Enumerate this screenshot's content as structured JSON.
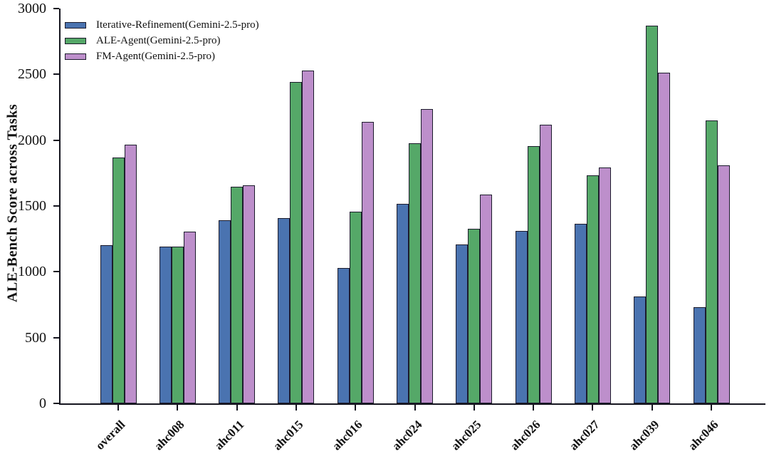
{
  "chart_data": {
    "type": "bar",
    "title": "",
    "ylabel": "ALE-Bench Score across Tasks",
    "xlabel": "",
    "ylim": [
      0,
      3000
    ],
    "yticks": [
      0,
      500,
      1000,
      1500,
      2000,
      2500,
      3000
    ],
    "categories": [
      "overall",
      "ahc008",
      "ahc011",
      "ahc015",
      "ahc016",
      "ahc024",
      "ahc025",
      "ahc026",
      "ahc027",
      "ahc039",
      "ahc046"
    ],
    "series": [
      {
        "name": "Iterative-Refinement(Gemini-2.5-pro)",
        "color": "#4a73b0",
        "values": [
          1200,
          1190,
          1390,
          1410,
          1030,
          1515,
          1210,
          1310,
          1365,
          810,
          730
        ]
      },
      {
        "name": "ALE-Agent(Gemini-2.5-pro)",
        "color": "#55a868",
        "values": [
          1870,
          1190,
          1645,
          2440,
          1455,
          1975,
          1325,
          1955,
          1735,
          2870,
          2150
        ]
      },
      {
        "name": "FM-Agent(Gemini-2.5-pro)",
        "color": "#bd8fcb",
        "values": [
          1965,
          1305,
          1655,
          2530,
          2140,
          2235,
          1585,
          2115,
          1790,
          2515,
          1810
        ]
      }
    ],
    "legend_position": "upper-left",
    "grid": false,
    "colors": {
      "axis": "#15151f",
      "bar_edge": "#1c1c2c",
      "background": "#ffffff",
      "text": "#111111"
    }
  }
}
